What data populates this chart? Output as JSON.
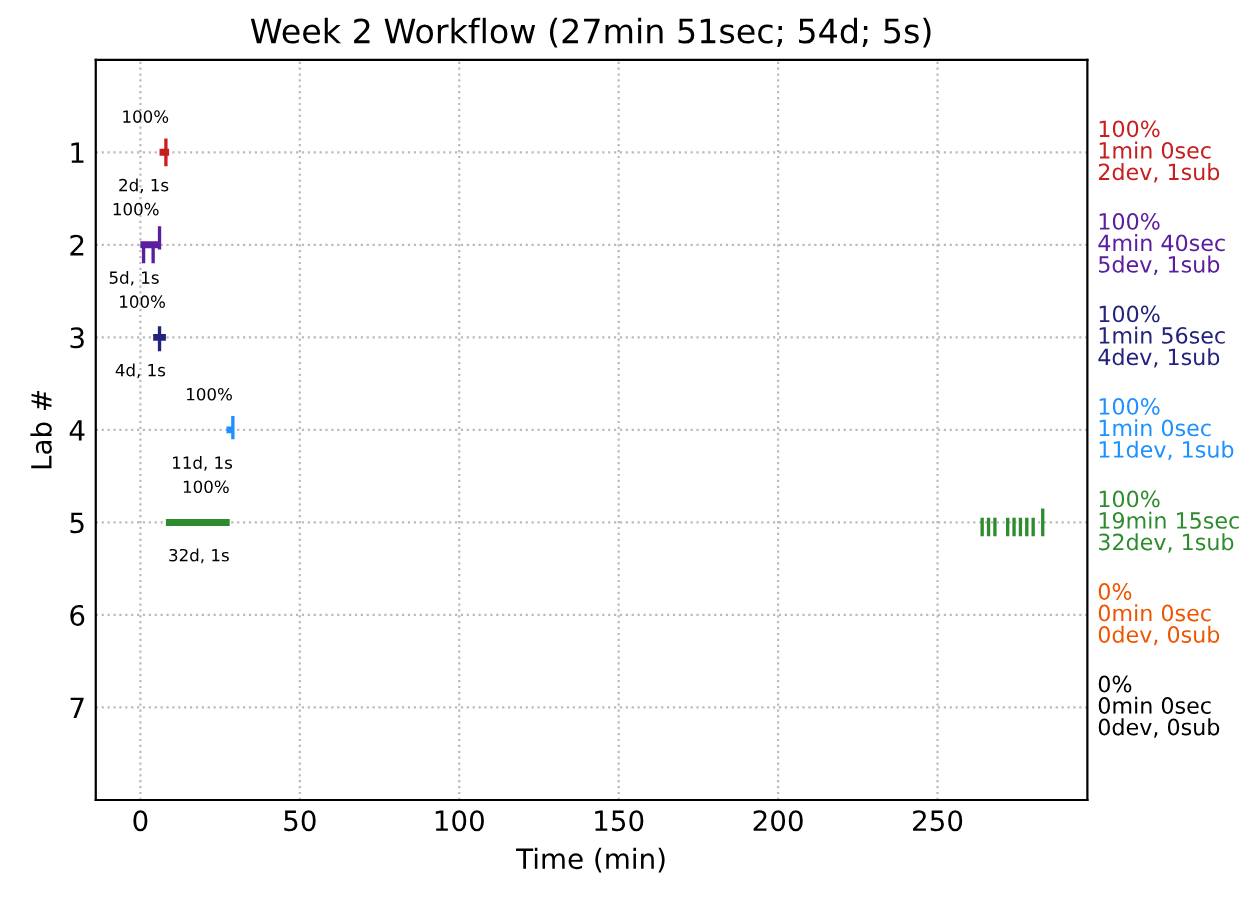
{
  "chart_data": {
    "type": "line",
    "title": "Week 2 Workflow (27min 51sec; 54d; 5s)",
    "xlabel": "Time (min)",
    "ylabel": "Lab #",
    "xlim": [
      -14,
      297
    ],
    "xticks": [
      0,
      50,
      100,
      150,
      200,
      250
    ],
    "ylim": [
      8,
      0
    ],
    "yticks": [
      1,
      2,
      3,
      4,
      5,
      6,
      7
    ],
    "colors": [
      "#c81e1e",
      "#5a1e9e",
      "#23237e",
      "#1e90ff",
      "#2e8b2e",
      "#ee5500",
      "#000000"
    ],
    "grid": true,
    "line_style": "solid",
    "marker": "none",
    "series": [
      {
        "color": "#c81e1e",
        "x": [
          6,
          9
        ],
        "values": [
          1,
          1
        ]
      },
      {
        "color": "#c81e1e",
        "x": [
          8,
          8
        ],
        "values": [
          0.85,
          1.15
        ]
      },
      {
        "color": "#5a1e9e",
        "x": [
          0,
          6
        ],
        "values": [
          2,
          2
        ]
      },
      {
        "color": "#5a1e9e",
        "x": [
          1,
          1,
          null,
          4,
          4,
          null,
          6,
          6
        ],
        "values": [
          2.0,
          2.2,
          null,
          2.0,
          2.2,
          null,
          1.8,
          2.05
        ]
      },
      {
        "color": "#23237e",
        "x": [
          4,
          8
        ],
        "values": [
          3,
          3
        ]
      },
      {
        "color": "#23237e",
        "x": [
          6,
          6
        ],
        "values": [
          2.88,
          3.15
        ]
      },
      {
        "color": "#1e90ff",
        "x": [
          27,
          29
        ],
        "values": [
          4,
          4
        ]
      },
      {
        "color": "#1e90ff",
        "x": [
          29,
          29
        ],
        "values": [
          3.85,
          4.1
        ]
      },
      {
        "color": "#2e8b2e",
        "x": [
          8,
          28
        ],
        "values": [
          5,
          5
        ]
      },
      {
        "color": "#2e8b2e",
        "x": [
          264,
          264,
          null,
          266,
          266,
          null,
          268,
          268,
          null,
          272,
          272,
          null,
          274,
          274,
          null,
          276,
          276,
          null,
          278,
          278,
          null,
          280,
          280,
          null,
          283,
          283
        ],
        "values": [
          4.95,
          5.15,
          null,
          4.95,
          5.15,
          null,
          4.95,
          5.15,
          null,
          4.95,
          5.15,
          null,
          4.95,
          5.15,
          null,
          4.95,
          5.15,
          null,
          4.95,
          5.15,
          null,
          4.95,
          5.15,
          null,
          4.85,
          5.15
        ]
      }
    ],
    "annotations": [
      "100%",
      "2d, 1s",
      "100%",
      "5d, 1s",
      "100%",
      "4d, 1s",
      "100%",
      "11d, 1s",
      "100%",
      "32d, 1s",
      "100%\n1min 0sec\n2dev, 1sub",
      "100%\n4min 40sec\n5dev, 1sub",
      "100%\n1min 56sec\n4dev, 1sub",
      "100%\n1min 0sec\n11dev, 1sub",
      "100%\n19min 15sec\n32dev, 1sub",
      "0%\n0min 0sec\n0dev, 0sub",
      "0%\n0min 0sec\n0dev, 0sub"
    ]
  }
}
